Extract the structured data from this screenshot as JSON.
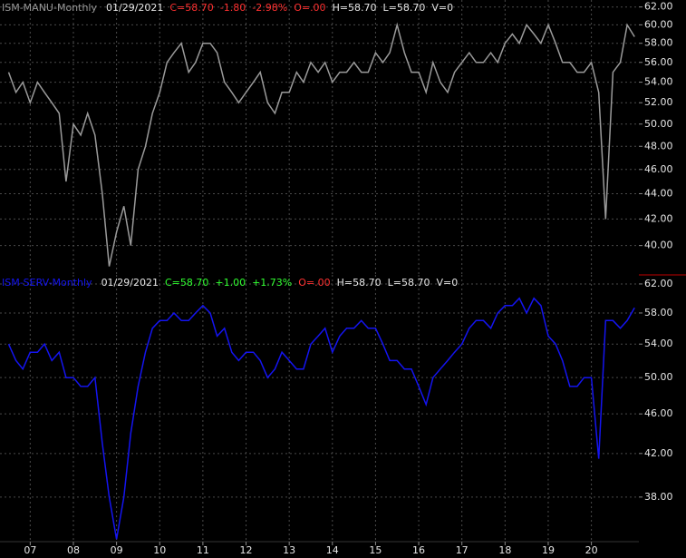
{
  "chart_data": [
    {
      "type": "line",
      "title": "ISM-MANU-Monthly",
      "date": "01/29/2021",
      "header_stats": [
        {
          "text": "C=58.70",
          "color": "#ff3030"
        },
        {
          "text": "-1.80",
          "color": "#ff3030"
        },
        {
          "text": "-2.98%",
          "color": "#ff3030"
        },
        {
          "text": "O=.00",
          "color": "#ff3030"
        },
        {
          "text": "H=58.70",
          "color": "#e6e6e6"
        },
        {
          "text": "L=58.70",
          "color": "#e6e6e6"
        },
        {
          "text": "V=0",
          "color": "#e6e6e6"
        }
      ],
      "x": [
        2006.5,
        2006.67,
        2006.83,
        2007,
        2007.17,
        2007.33,
        2007.5,
        2007.67,
        2007.83,
        2008,
        2008.17,
        2008.33,
        2008.5,
        2008.67,
        2008.83,
        2009,
        2009.17,
        2009.33,
        2009.5,
        2009.67,
        2009.83,
        2010,
        2010.17,
        2010.33,
        2010.5,
        2010.67,
        2010.83,
        2011,
        2011.17,
        2011.33,
        2011.5,
        2011.67,
        2011.83,
        2012,
        2012.17,
        2012.33,
        2012.5,
        2012.67,
        2012.83,
        2013,
        2013.17,
        2013.33,
        2013.5,
        2013.67,
        2013.83,
        2014,
        2014.17,
        2014.33,
        2014.5,
        2014.67,
        2014.83,
        2015,
        2015.17,
        2015.33,
        2015.5,
        2015.67,
        2015.83,
        2016,
        2016.17,
        2016.33,
        2016.5,
        2016.67,
        2016.83,
        2017,
        2017.17,
        2017.33,
        2017.5,
        2017.67,
        2017.83,
        2018,
        2018.17,
        2018.33,
        2018.5,
        2018.67,
        2018.83,
        2019,
        2019.17,
        2019.33,
        2019.5,
        2019.67,
        2019.83,
        2020,
        2020.17,
        2020.33,
        2020.5,
        2020.67,
        2020.83,
        2021
      ],
      "series": [
        {
          "name": "ISM-MANU-Monthly",
          "color": "#9a9a9a",
          "values": [
            55,
            53,
            54,
            52,
            54,
            53,
            52,
            51,
            45,
            50,
            49,
            51,
            49,
            44,
            38.5,
            41,
            43,
            40,
            46,
            48,
            51,
            53,
            56,
            57,
            58,
            55,
            56,
            58,
            58,
            57,
            54,
            53,
            52,
            53,
            54,
            55,
            52,
            51,
            53,
            53,
            55,
            54,
            56,
            55,
            56,
            54,
            55,
            55,
            56,
            55,
            55,
            57,
            56,
            57,
            60,
            57,
            55,
            55,
            53,
            56,
            54,
            53,
            55,
            56,
            57,
            56,
            56,
            57,
            56,
            58,
            59,
            58,
            60,
            59,
            58,
            60,
            58,
            56,
            56,
            55,
            55,
            56,
            53,
            42,
            55,
            56,
            60,
            58.7
          ]
        }
      ],
      "xlim": [
        2006.3,
        2021.1
      ],
      "ylim": [
        37.9,
        62.8
      ],
      "log_scale": true,
      "grid": true,
      "yticks": [
        {
          "value": 62,
          "label": "62.00"
        },
        {
          "value": 60,
          "label": "60.00"
        },
        {
          "value": 58,
          "label": "58.00"
        },
        {
          "value": 56,
          "label": "56.00"
        },
        {
          "value": 54,
          "label": "54.00"
        },
        {
          "value": 52,
          "label": "52.00"
        },
        {
          "value": 50,
          "label": "50.00"
        },
        {
          "value": 48,
          "label": "48.00"
        },
        {
          "value": 46,
          "label": "46.00"
        },
        {
          "value": 44,
          "label": "44.00"
        },
        {
          "value": 42,
          "label": "42.00"
        },
        {
          "value": 40,
          "label": "40.00"
        }
      ]
    },
    {
      "type": "line",
      "title": "ISM-SERV-Monthly",
      "date": "01/29/2021",
      "header_stats": [
        {
          "text": "C=58.70",
          "color": "#30ff30"
        },
        {
          "text": "+1.00",
          "color": "#30ff30"
        },
        {
          "text": "+1.73%",
          "color": "#30ff30"
        },
        {
          "text": "O=.00",
          "color": "#ff3030"
        },
        {
          "text": "H=58.70",
          "color": "#e6e6e6"
        },
        {
          "text": "L=58.70",
          "color": "#e6e6e6"
        },
        {
          "text": "V=0",
          "color": "#e6e6e6"
        }
      ],
      "x": [
        2006.5,
        2006.67,
        2006.83,
        2007,
        2007.17,
        2007.33,
        2007.5,
        2007.67,
        2007.83,
        2008,
        2008.17,
        2008.33,
        2008.5,
        2008.67,
        2008.83,
        2009,
        2009.17,
        2009.33,
        2009.5,
        2009.67,
        2009.83,
        2010,
        2010.17,
        2010.33,
        2010.5,
        2010.67,
        2010.83,
        2011,
        2011.17,
        2011.33,
        2011.5,
        2011.67,
        2011.83,
        2012,
        2012.17,
        2012.33,
        2012.5,
        2012.67,
        2012.83,
        2013,
        2013.17,
        2013.33,
        2013.5,
        2013.67,
        2013.83,
        2014,
        2014.17,
        2014.33,
        2014.5,
        2014.67,
        2014.83,
        2015,
        2015.17,
        2015.33,
        2015.5,
        2015.67,
        2015.83,
        2016,
        2016.17,
        2016.33,
        2016.5,
        2016.67,
        2016.83,
        2017,
        2017.17,
        2017.33,
        2017.5,
        2017.67,
        2017.83,
        2018,
        2018.17,
        2018.33,
        2018.5,
        2018.67,
        2018.83,
        2019,
        2019.17,
        2019.33,
        2019.5,
        2019.67,
        2019.83,
        2020,
        2020.17,
        2020.33,
        2020.5,
        2020.67,
        2020.83,
        2021
      ],
      "series": [
        {
          "name": "ISM-SERV-Monthly",
          "color": "#1414f0",
          "values": [
            54,
            52,
            51,
            53,
            53,
            54,
            52,
            53,
            50,
            50,
            49,
            49,
            50,
            43,
            38,
            34.5,
            38,
            44,
            49,
            53,
            56,
            57,
            57,
            58,
            57,
            57,
            58,
            59,
            58,
            55,
            56,
            53,
            52,
            53,
            53,
            52,
            50,
            51,
            53,
            52,
            51,
            51,
            54,
            55,
            56,
            53,
            55,
            56,
            56,
            57,
            56,
            56,
            54,
            52,
            52,
            51,
            51,
            49,
            47,
            50,
            51,
            52,
            53,
            54,
            56,
            57,
            57,
            56,
            58,
            59,
            59,
            60,
            58,
            60,
            59,
            55,
            54,
            52,
            49,
            49,
            50,
            50,
            41.5,
            57,
            57,
            56,
            57,
            58.7
          ]
        }
      ],
      "xlim": [
        2006.3,
        2021.1
      ],
      "ylim": [
        34.3,
        63.3
      ],
      "log_scale": true,
      "grid": true,
      "yticks": [
        {
          "value": 62,
          "label": "62.00"
        },
        {
          "value": 58,
          "label": "58.00"
        },
        {
          "value": 54,
          "label": "54.00"
        },
        {
          "value": 50,
          "label": "50.00"
        },
        {
          "value": 46,
          "label": "46.00"
        },
        {
          "value": 42,
          "label": "42.00"
        },
        {
          "value": 38,
          "label": "38.00"
        }
      ],
      "xticks": [
        {
          "value": 2007,
          "label": "07"
        },
        {
          "value": 2008,
          "label": "08"
        },
        {
          "value": 2009,
          "label": "09"
        },
        {
          "value": 2010,
          "label": "10"
        },
        {
          "value": 2011,
          "label": "11"
        },
        {
          "value": 2012,
          "label": "12"
        },
        {
          "value": 2013,
          "label": "13"
        },
        {
          "value": 2014,
          "label": "14"
        },
        {
          "value": 2015,
          "label": "15"
        },
        {
          "value": 2016,
          "label": "16"
        },
        {
          "value": 2017,
          "label": "17"
        },
        {
          "value": 2018,
          "label": "18"
        },
        {
          "value": 2019,
          "label": "19"
        },
        {
          "value": 2020,
          "label": "20"
        }
      ]
    }
  ]
}
